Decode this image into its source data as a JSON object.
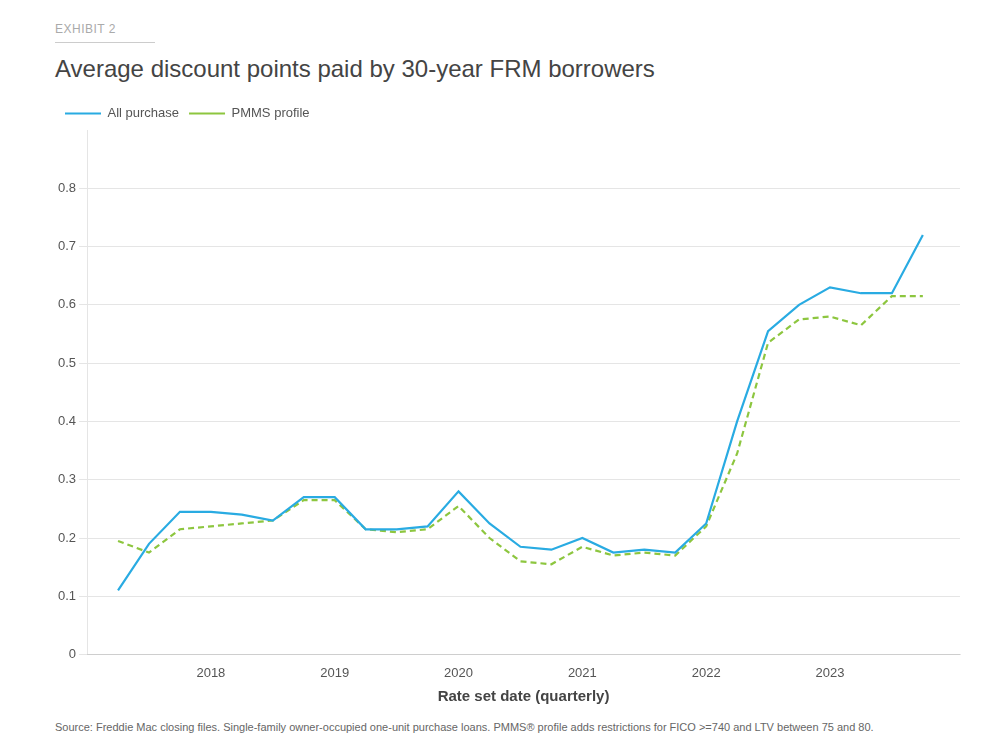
{
  "chart_data": {
    "type": "line",
    "title": "Average discount points paid by 30-year FRM borrowers",
    "subtitle": "EXHIBIT 2",
    "x_label": "Rate set date (quarterly)",
    "annotations": [
      "Source: Freddie Mac closing files. Single-family owner-occupied one-unit purchase loans. PMMS® profile adds restrictions for FICO >=740 and LTV between 75 and 80."
    ],
    "x": [
      2017.25,
      2017.5,
      2017.75,
      2018.0,
      2018.25,
      2018.5,
      2018.75,
      2019.0,
      2019.25,
      2019.5,
      2019.75,
      2020.0,
      2020.25,
      2020.5,
      2020.75,
      2021.0,
      2021.25,
      2021.5,
      2021.75,
      2022.0,
      2022.25,
      2022.5,
      2022.75,
      2023.0,
      2023.25,
      2023.5,
      2023.75
    ],
    "series": [
      {
        "name": "All purchase",
        "color": "#29ABE2",
        "line_style": "solid",
        "values": [
          0.11,
          0.19,
          0.245,
          0.245,
          0.24,
          0.23,
          0.27,
          0.27,
          0.215,
          0.215,
          0.22,
          0.28,
          0.225,
          0.185,
          0.18,
          0.2,
          0.175,
          0.18,
          0.175,
          0.225,
          0.4,
          0.555,
          0.6,
          0.63,
          0.62,
          0.62,
          0.72
        ]
      },
      {
        "name": "PMMS profile",
        "color": "#8DC63F",
        "line_style": "dashed",
        "values": [
          0.195,
          0.175,
          0.215,
          0.22,
          0.225,
          0.23,
          0.265,
          0.265,
          0.215,
          0.21,
          0.215,
          0.255,
          0.2,
          0.16,
          0.155,
          0.185,
          0.17,
          0.175,
          0.17,
          0.22,
          0.345,
          0.535,
          0.575,
          0.58,
          0.565,
          0.615,
          0.615
        ]
      }
    ],
    "xlim": [
      2017.0,
      2024.05
    ],
    "xticks": [
      2018,
      2019,
      2020,
      2021,
      2022,
      2023
    ],
    "ylim": [
      0,
      0.9
    ],
    "yticks": [
      0,
      0.1,
      0.2,
      0.3,
      0.4,
      0.5,
      0.6,
      0.7,
      0.8
    ],
    "grid": "y",
    "legend": "upper left"
  }
}
